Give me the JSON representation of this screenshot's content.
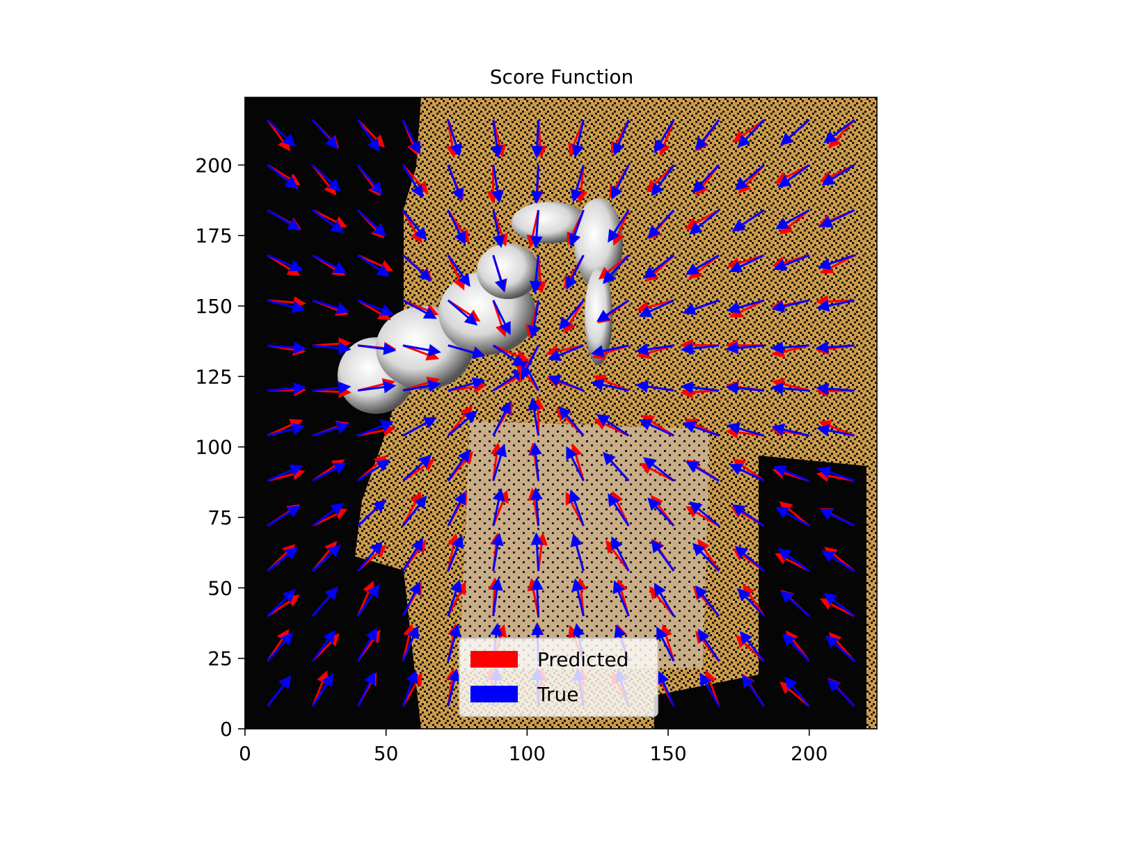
{
  "chart_data": {
    "type": "quiver",
    "title": "Score Function",
    "xlabel": "",
    "ylabel": "",
    "xlim": [
      0,
      224
    ],
    "ylim": [
      0,
      224
    ],
    "x_ticks": [
      0,
      50,
      100,
      150,
      200
    ],
    "y_ticks": [
      0,
      25,
      50,
      75,
      100,
      125,
      150,
      175,
      200
    ],
    "background": "image of a robot arm above a table (camera view)",
    "grid_x": [
      8,
      24,
      40,
      56,
      72,
      88,
      104,
      120,
      136,
      152,
      168,
      184,
      200,
      216
    ],
    "grid_y": [
      8,
      24,
      40,
      56,
      72,
      88,
      104,
      120,
      136,
      152,
      168,
      184,
      200,
      216
    ],
    "legend": {
      "position": "lower-center",
      "entries": [
        "Predicted",
        "True"
      ]
    },
    "series": [
      {
        "name": "Predicted",
        "color": "#ff0000"
      },
      {
        "name": "True",
        "color": "#0000ff"
      }
    ],
    "vector_field_description": "Arrows converge toward approximately (100, 128); predicted (red) and true (blue) closely aligned."
  },
  "colors": {
    "predicted": "#ff0000",
    "true": "#0000ff",
    "dark_bg": "#050505",
    "texture": "#c99a4c",
    "table": "#c8ad88"
  }
}
